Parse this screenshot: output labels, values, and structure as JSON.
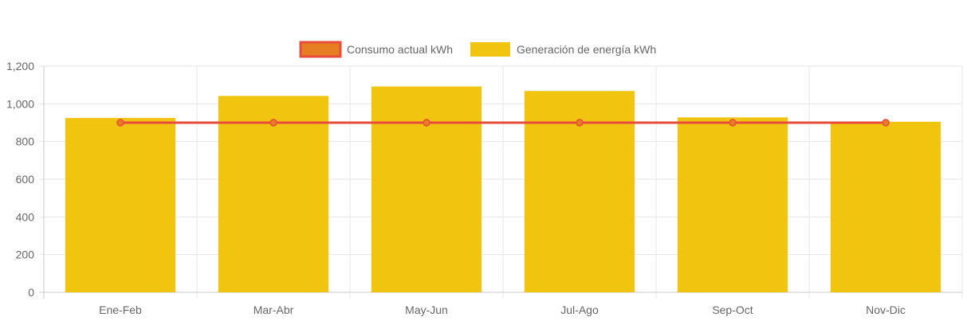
{
  "chart_data": {
    "type": "bar",
    "categories": [
      "Ene-Feb",
      "Mar-Abr",
      "May-Jun",
      "Jul-Ago",
      "Sep-Oct",
      "Nov-Dic"
    ],
    "series": [
      {
        "name": "Consumo actual kWh",
        "type": "line",
        "values": [
          900,
          900,
          900,
          900,
          900,
          900
        ],
        "color": "#e74c3c",
        "point_color": "#e67e22"
      },
      {
        "name": "Generación de energía kWh",
        "type": "bar",
        "values": [
          925,
          1042,
          1092,
          1068,
          928,
          905
        ],
        "color": "#f1c40f"
      }
    ],
    "ylim": [
      0,
      1200
    ],
    "yticks": [
      "0",
      "200",
      "400",
      "600",
      "800",
      "1,000",
      "1,200"
    ],
    "ytick_values": [
      0,
      200,
      400,
      600,
      800,
      1000,
      1200
    ],
    "grid": true,
    "legend_position": "top-center",
    "title": "",
    "xlabel": "",
    "ylabel": ""
  },
  "legend": {
    "consumo_label": "Consumo actual kWh",
    "generacion_label": "Generación de energía kWh"
  },
  "colors": {
    "grid": "#e5e5e5",
    "axis": "#c8c8c8",
    "tick_text": "#666666"
  }
}
